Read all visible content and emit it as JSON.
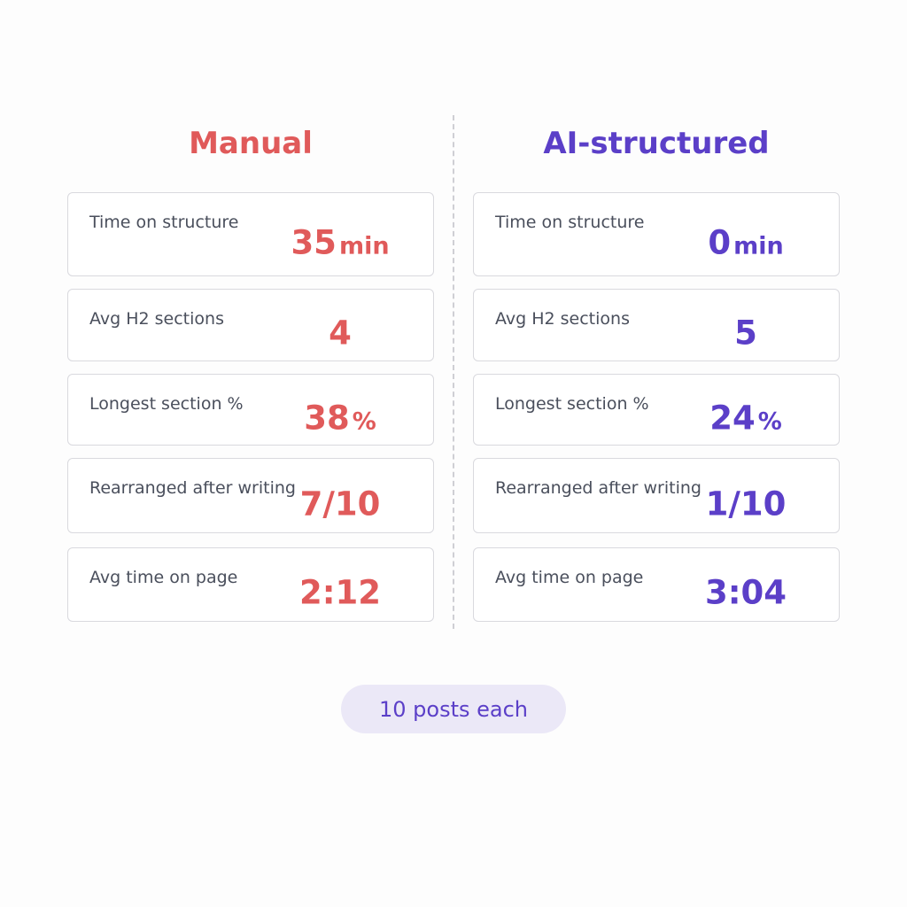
{
  "columns": [
    {
      "title": "Manual",
      "color": "#e05a5a",
      "rows": [
        {
          "label": "Time on structure",
          "value": "35",
          "unit": "min"
        },
        {
          "label": "Avg H2 sections",
          "value": "4"
        },
        {
          "label": "Longest section %",
          "value": "38",
          "unit": "%"
        },
        {
          "label": "Rearranged after writing",
          "value": "7/10"
        },
        {
          "label": "Avg time on page",
          "value": "2:12"
        }
      ]
    },
    {
      "title": "AI-structured",
      "color": "#5b3fc8",
      "rows": [
        {
          "label": "Time on structure",
          "value": "0",
          "unit": "min"
        },
        {
          "label": "Avg H2 sections",
          "value": "5"
        },
        {
          "label": "Longest section %",
          "value": "24",
          "unit": "%"
        },
        {
          "label": "Rearranged after writing",
          "value": "1/10"
        },
        {
          "label": "Avg time on page",
          "value": "3:04"
        }
      ]
    }
  ],
  "footer": "10 posts each"
}
